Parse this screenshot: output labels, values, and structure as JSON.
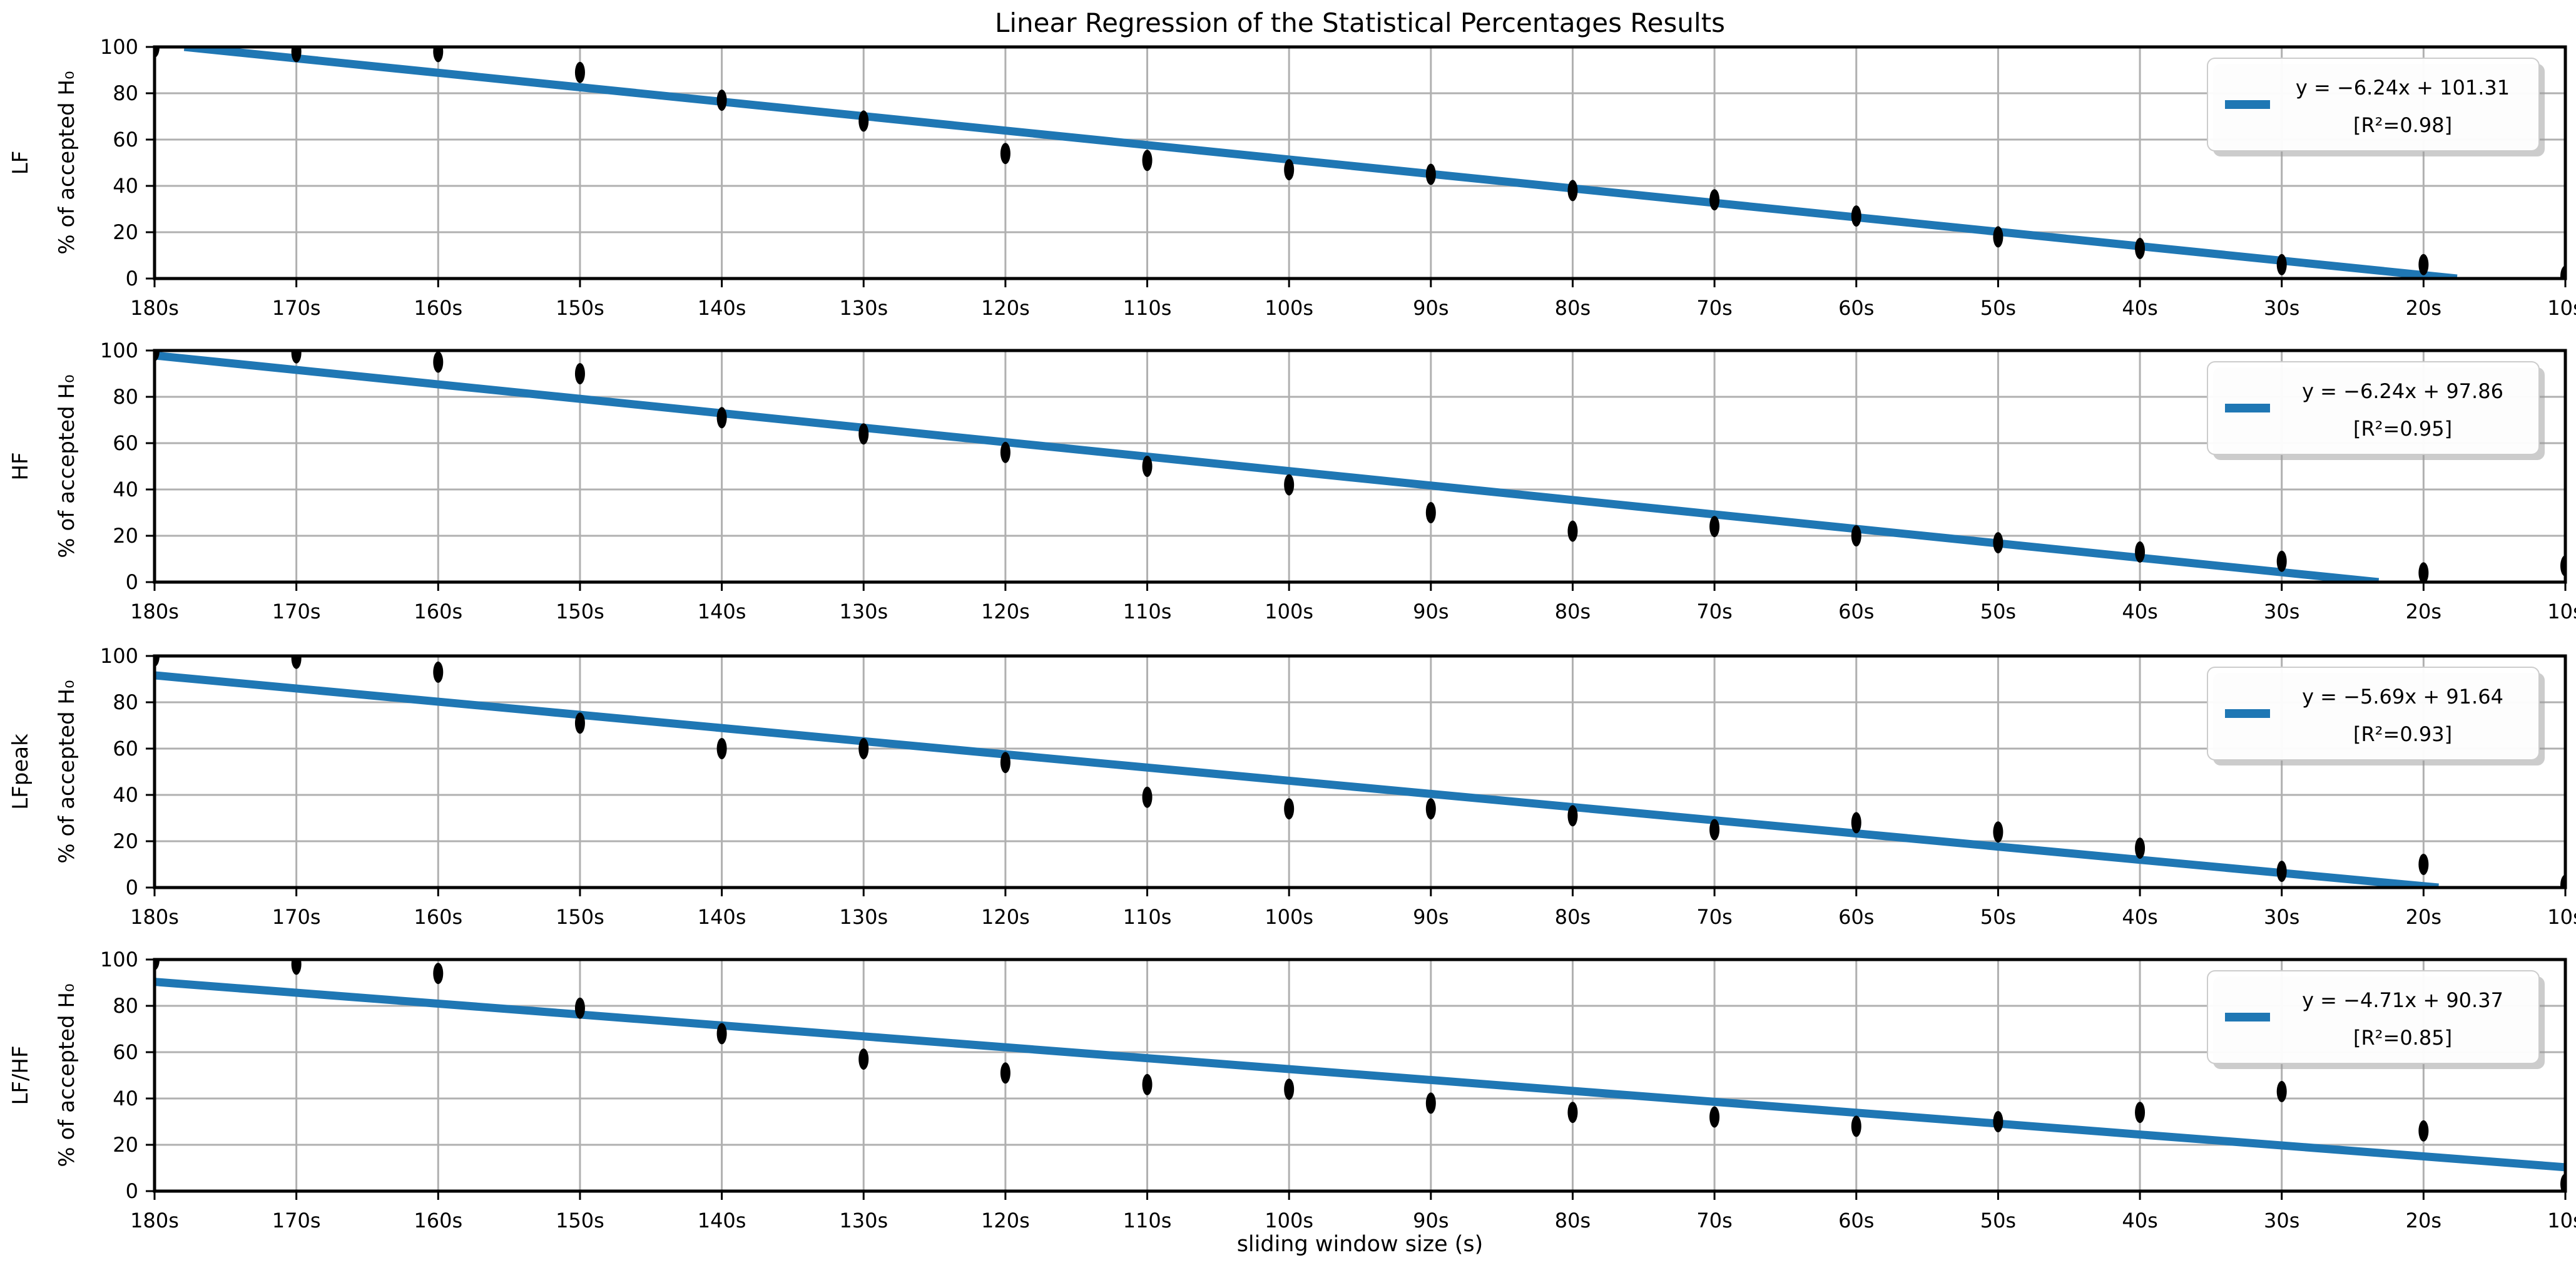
{
  "chart_data": {
    "type": "scatter",
    "title": "Linear Regression of the Statistical Percentages Results",
    "xlabel": "sliding window size (s)",
    "ylabel": "% of accepted H₀",
    "categories": [
      "180s",
      "170s",
      "160s",
      "150s",
      "140s",
      "130s",
      "120s",
      "110s",
      "100s",
      "90s",
      "80s",
      "70s",
      "60s",
      "50s",
      "40s",
      "30s",
      "20s",
      "10s"
    ],
    "ylim": [
      0,
      100
    ],
    "yticks": [
      0,
      20,
      40,
      60,
      80,
      100
    ],
    "grid": true,
    "legend_position": "upper right",
    "series": [
      {
        "name": "LF",
        "values": [
          100,
          98,
          98,
          89,
          77,
          68,
          54,
          51,
          47,
          45,
          38,
          34,
          27,
          18,
          13,
          6,
          6,
          1
        ],
        "fit": {
          "slope": -6.24,
          "intercept": 101.31,
          "r2": 0.98
        },
        "legend": [
          "y = −6.24x + 101.31",
          "[R²=0.98]"
        ]
      },
      {
        "name": "HF",
        "values": [
          100,
          99,
          95,
          90,
          71,
          64,
          56,
          50,
          42,
          30,
          22,
          24,
          20,
          17,
          13,
          9,
          4,
          7
        ],
        "fit": {
          "slope": -6.24,
          "intercept": 97.86,
          "r2": 0.95
        },
        "legend": [
          "y = −6.24x + 97.86",
          "[R²=0.95]"
        ]
      },
      {
        "name": "LFpeak",
        "values": [
          100,
          99,
          93,
          71,
          60,
          60,
          54,
          39,
          34,
          34,
          31,
          25,
          28,
          24,
          17,
          7,
          10,
          1
        ],
        "fit": {
          "slope": -5.69,
          "intercept": 91.64,
          "r2": 0.93
        },
        "legend": [
          "y = −5.69x + 91.64",
          "[R²=0.93]"
        ]
      },
      {
        "name": "LF/HF",
        "values": [
          100,
          98,
          94,
          79,
          68,
          57,
          51,
          46,
          44,
          38,
          34,
          32,
          28,
          30,
          34,
          43,
          26,
          3
        ],
        "fit": {
          "slope": -4.71,
          "intercept": 90.37,
          "r2": 0.85
        },
        "legend": [
          "y = −4.71x + 90.37",
          "[R²=0.85]"
        ]
      }
    ],
    "style": {
      "line_color": "#1f77b4",
      "marker_color": "#000000",
      "grid_color": "#b0b0b0",
      "spine_color": "#000000",
      "legend_border_color": "#cccccc",
      "legend_shadow_color": "#999999"
    }
  }
}
